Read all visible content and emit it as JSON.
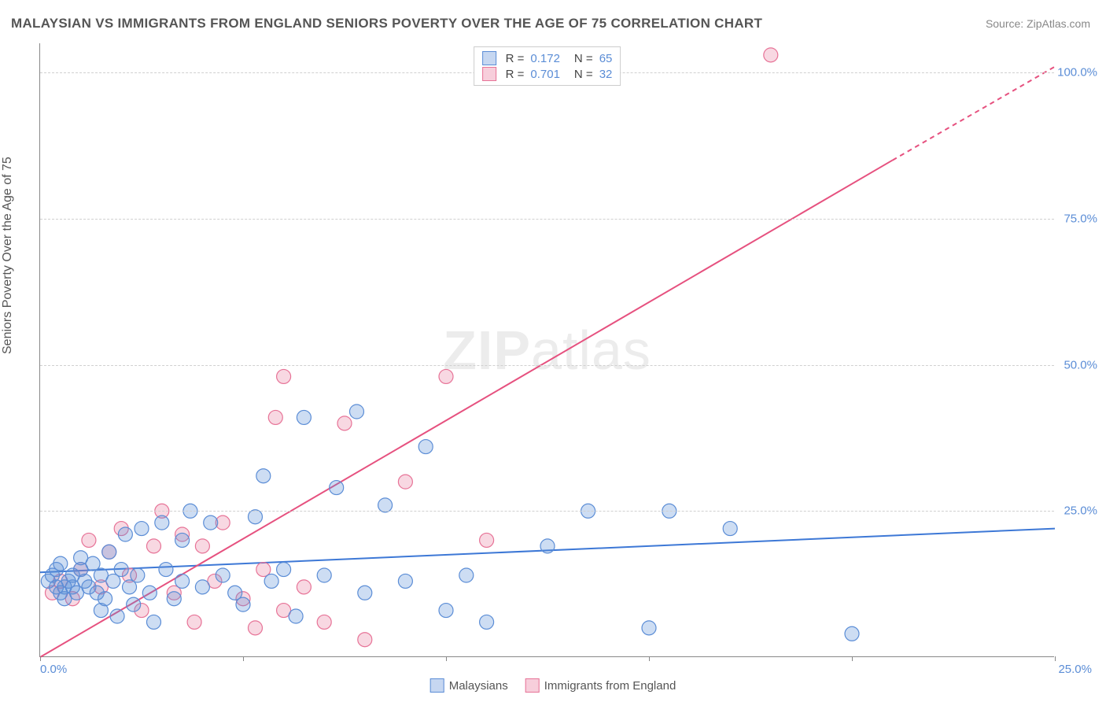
{
  "title": "MALAYSIAN VS IMMIGRANTS FROM ENGLAND SENIORS POVERTY OVER THE AGE OF 75 CORRELATION CHART",
  "source": "Source: ZipAtlas.com",
  "y_axis_label": "Seniors Poverty Over the Age of 75",
  "watermark": "ZIPatlas",
  "legend_top": {
    "series": [
      {
        "swatch": "blue",
        "r_label": "R =",
        "r_value": "0.172",
        "n_label": "N =",
        "n_value": "65"
      },
      {
        "swatch": "pink",
        "r_label": "R =",
        "r_value": "0.701",
        "n_label": "N =",
        "n_value": "32"
      }
    ]
  },
  "legend_bottom": {
    "items": [
      {
        "swatch": "blue",
        "label": "Malaysians"
      },
      {
        "swatch": "pink",
        "label": "Immigrants from England"
      }
    ]
  },
  "chart": {
    "type": "scatter",
    "xlim": [
      0,
      25
    ],
    "ylim": [
      0,
      105
    ],
    "x_ticks": [
      0,
      5,
      10,
      15,
      20,
      25
    ],
    "y_gridlines": [
      25,
      50,
      75,
      100
    ],
    "y_tick_labels": [
      "25.0%",
      "50.0%",
      "75.0%",
      "100.0%"
    ],
    "x_tick_labels": {
      "left": "0.0%",
      "right": "25.0%"
    },
    "background_color": "#ffffff",
    "grid_color": "#d0d0d0",
    "axis_color": "#888888",
    "marker_radius": 9,
    "marker_stroke_width": 1.2,
    "line_width": 2,
    "series": {
      "malaysians": {
        "fill": "rgba(91,141,214,0.30)",
        "stroke": "#5b8dd6",
        "line_color": "#3d78d6",
        "points": [
          [
            0.2,
            13
          ],
          [
            0.3,
            14
          ],
          [
            0.4,
            12
          ],
          [
            0.4,
            15
          ],
          [
            0.5,
            11
          ],
          [
            0.5,
            16
          ],
          [
            0.6,
            12
          ],
          [
            0.6,
            10
          ],
          [
            0.7,
            13
          ],
          [
            0.8,
            14
          ],
          [
            0.8,
            12
          ],
          [
            0.9,
            11
          ],
          [
            1.0,
            15
          ],
          [
            1.0,
            17
          ],
          [
            1.1,
            13
          ],
          [
            1.2,
            12
          ],
          [
            1.3,
            16
          ],
          [
            1.4,
            11
          ],
          [
            1.5,
            8
          ],
          [
            1.5,
            14
          ],
          [
            1.6,
            10
          ],
          [
            1.7,
            18
          ],
          [
            1.8,
            13
          ],
          [
            1.9,
            7
          ],
          [
            2.0,
            15
          ],
          [
            2.1,
            21
          ],
          [
            2.2,
            12
          ],
          [
            2.3,
            9
          ],
          [
            2.4,
            14
          ],
          [
            2.5,
            22
          ],
          [
            2.7,
            11
          ],
          [
            2.8,
            6
          ],
          [
            3.0,
            23
          ],
          [
            3.1,
            15
          ],
          [
            3.3,
            10
          ],
          [
            3.5,
            13
          ],
          [
            3.5,
            20
          ],
          [
            3.7,
            25
          ],
          [
            4.0,
            12
          ],
          [
            4.2,
            23
          ],
          [
            4.5,
            14
          ],
          [
            4.8,
            11
          ],
          [
            5.0,
            9
          ],
          [
            5.3,
            24
          ],
          [
            5.5,
            31
          ],
          [
            5.7,
            13
          ],
          [
            6.0,
            15
          ],
          [
            6.3,
            7
          ],
          [
            6.5,
            41
          ],
          [
            7.0,
            14
          ],
          [
            7.3,
            29
          ],
          [
            7.8,
            42
          ],
          [
            8.0,
            11
          ],
          [
            8.5,
            26
          ],
          [
            9.0,
            13
          ],
          [
            9.5,
            36
          ],
          [
            10.0,
            8
          ],
          [
            10.5,
            14
          ],
          [
            11.0,
            6
          ],
          [
            12.5,
            19
          ],
          [
            13.5,
            25
          ],
          [
            15.0,
            5
          ],
          [
            15.5,
            25
          ],
          [
            17.0,
            22
          ],
          [
            20.0,
            4
          ]
        ],
        "trend": {
          "x1": 0,
          "y1": 14.5,
          "x2": 25,
          "y2": 22,
          "dash": null
        }
      },
      "england": {
        "fill": "rgba(231,115,151,0.28)",
        "stroke": "#e77397",
        "line_color": "#e6517f",
        "points": [
          [
            0.3,
            11
          ],
          [
            0.5,
            13
          ],
          [
            0.8,
            10
          ],
          [
            1.0,
            15
          ],
          [
            1.2,
            20
          ],
          [
            1.5,
            12
          ],
          [
            1.7,
            18
          ],
          [
            2.0,
            22
          ],
          [
            2.2,
            14
          ],
          [
            2.5,
            8
          ],
          [
            2.8,
            19
          ],
          [
            3.0,
            25
          ],
          [
            3.3,
            11
          ],
          [
            3.5,
            21
          ],
          [
            3.8,
            6
          ],
          [
            4.0,
            19
          ],
          [
            4.3,
            13
          ],
          [
            4.5,
            23
          ],
          [
            5.0,
            10
          ],
          [
            5.3,
            5
          ],
          [
            5.5,
            15
          ],
          [
            5.8,
            41
          ],
          [
            6.0,
            8
          ],
          [
            6.0,
            48
          ],
          [
            6.5,
            12
          ],
          [
            7.0,
            6
          ],
          [
            7.5,
            40
          ],
          [
            8.0,
            3
          ],
          [
            9.0,
            30
          ],
          [
            10.0,
            48
          ],
          [
            11.0,
            20
          ],
          [
            18.0,
            103
          ]
        ],
        "trend": {
          "solid": {
            "x1": 0,
            "y1": 0,
            "x2": 21,
            "y2": 85
          },
          "dashed": {
            "x1": 21,
            "y1": 85,
            "x2": 25,
            "y2": 101
          }
        }
      }
    }
  }
}
